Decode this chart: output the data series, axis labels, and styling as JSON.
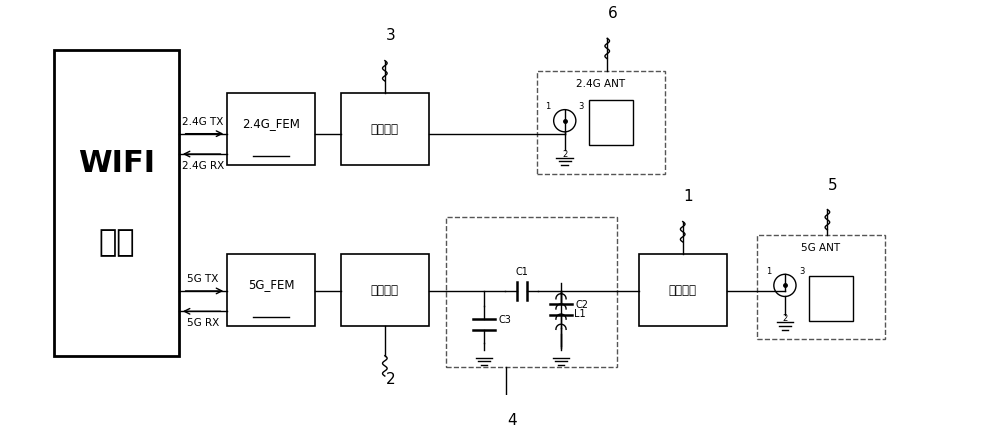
{
  "bg_color": "#ffffff",
  "wifi_chip_label": [
    "WIFI",
    "芯片"
  ],
  "fem_24g_label": "2.4G_FEM",
  "fem_5g_label": "5G_FEM",
  "match_label": "匹配电路",
  "ant_24g_label": "2.4G ANT",
  "ant_5g_label": "5G ANT",
  "tx_24g": "2.4G TX",
  "rx_24g": "2.4G RX",
  "tx_5g": "5G TX",
  "rx_5g": "5G RX",
  "C1": "C1",
  "C2": "C2",
  "C3": "C3",
  "L1": "L1",
  "line_color": "#000000",
  "dashed_color": "#555555",
  "font_size_main": 13,
  "font_size_label": 8,
  "font_size_ref": 11
}
